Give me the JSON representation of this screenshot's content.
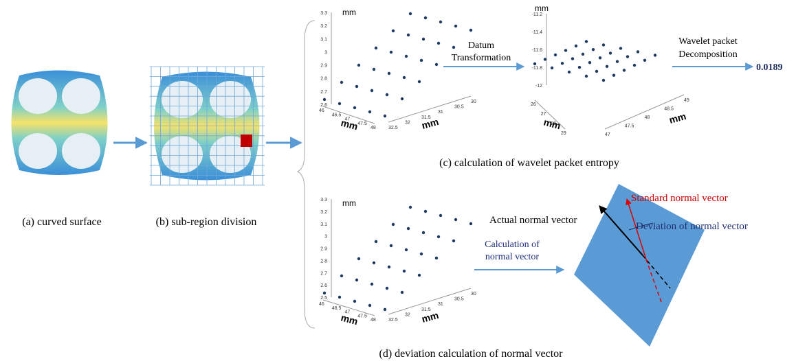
{
  "captions": [
    "(a) curved surface",
    "(b) sub-region division",
    "(c) calculation of wavelet packet entropy",
    "(d) deviation calculation of normal vector"
  ],
  "arrows": {
    "datum": [
      "Datum",
      "Transformation"
    ],
    "wavelet": [
      "Wavelet packet",
      "Decomposition"
    ],
    "normal": [
      "Calculation of",
      "normal vector"
    ]
  },
  "result": "0.0189",
  "vectors": {
    "standard": "Standard normal vector",
    "actual": "Actual normal vector",
    "deviation": "Deviation of normal vector"
  },
  "plots": [
    {
      "unit_labels": [
        "mm",
        "mm",
        "mm"
      ],
      "z_ticks": [
        "3.3",
        "3.2",
        "3.1",
        "3",
        "2.9",
        "2.8",
        "2.7",
        "2.6"
      ],
      "x_ticks": [
        "46",
        "46.5",
        "47",
        "47.5",
        "48"
      ],
      "y_ticks": [
        "32.5",
        "32",
        "31.5",
        "31",
        "30.5",
        "30"
      ]
    },
    {
      "unit_labels": [
        "mm",
        "mm",
        "mm"
      ],
      "z_ticks": [
        "-11.2",
        "-11.4",
        "-11.6",
        "-11.8",
        "-12"
      ],
      "x_ticks": [
        "26",
        "27",
        "28",
        "29"
      ],
      "y_ticks": [
        "47",
        "47.5",
        "48",
        "48.5",
        "49"
      ]
    },
    {
      "unit_labels": [
        "mm",
        "mm",
        "mm"
      ],
      "z_ticks": [
        "3.3",
        "3.2",
        "3.1",
        "3",
        "2.9",
        "2.8",
        "2.7",
        "2.6",
        "2.5"
      ],
      "x_ticks": [
        "46",
        "46.5",
        "47",
        "47.5",
        "48"
      ],
      "y_ticks": [
        "32.5",
        "32",
        "31.5",
        "31",
        "30.5",
        "30"
      ]
    }
  ]
}
